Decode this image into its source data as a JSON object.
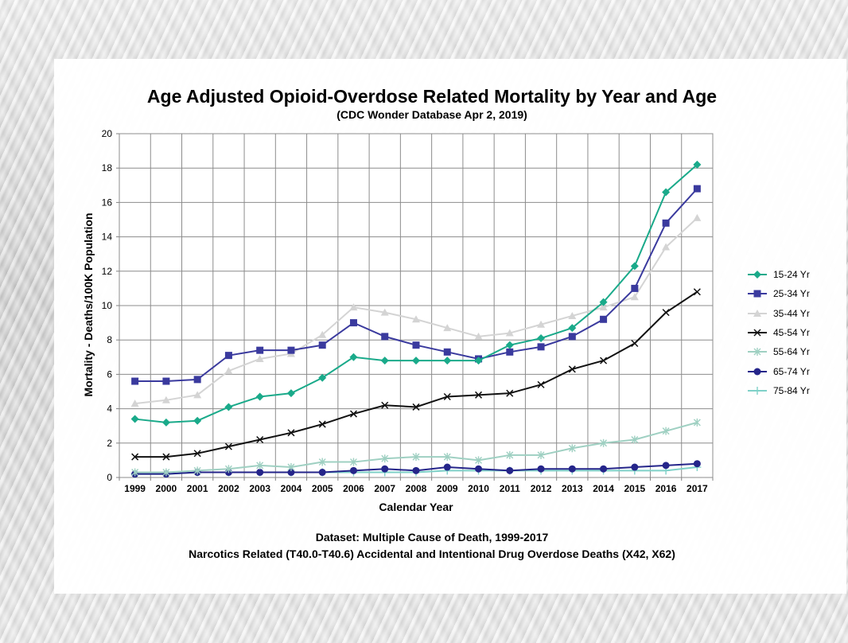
{
  "chart_data": {
    "type": "line",
    "title": "Age Adjusted Opioid-Overdose Related Mortality by Year and Age",
    "subtitle": "(CDC Wonder Database Apr 2, 2019)",
    "xlabel": "Calendar Year",
    "ylabel": "Mortality - Deaths/100K Population",
    "ylim": [
      0,
      20
    ],
    "yticks": [
      "0",
      "2",
      "4",
      "6",
      "8",
      "10",
      "12",
      "14",
      "16",
      "18",
      "20"
    ],
    "grid": true,
    "legend_position": "right",
    "x": [
      "1999",
      "2000",
      "2001",
      "2002",
      "2003",
      "2004",
      "2005",
      "2006",
      "2007",
      "2008",
      "2009",
      "2010",
      "2011",
      "2012",
      "2013",
      "2014",
      "2015",
      "2016",
      "2017"
    ],
    "series": [
      {
        "name": "15-24  Yr",
        "color": "#1aaa8a",
        "marker": "diamond",
        "values": [
          3.4,
          3.2,
          3.3,
          4.1,
          4.7,
          4.9,
          5.8,
          7.0,
          6.8,
          6.8,
          6.8,
          6.8,
          7.7,
          8.1,
          8.7,
          10.2,
          12.3,
          16.6,
          18.2
        ]
      },
      {
        "name": "25-34  Yr",
        "color": "#3a3a9e",
        "marker": "square",
        "values": [
          5.6,
          5.6,
          5.7,
          7.1,
          7.4,
          7.4,
          7.7,
          9.0,
          8.2,
          7.7,
          7.3,
          6.9,
          7.3,
          7.6,
          8.2,
          9.2,
          11.0,
          14.8,
          16.8
        ]
      },
      {
        "name": "35-44  Yr",
        "color": "#d4d4d4",
        "marker": "triangle",
        "values": [
          4.3,
          4.5,
          4.8,
          6.2,
          6.9,
          7.2,
          8.3,
          9.9,
          9.6,
          9.2,
          8.7,
          8.2,
          8.4,
          8.9,
          9.4,
          9.9,
          10.5,
          13.4,
          15.1
        ]
      },
      {
        "name": "45-54  Yr",
        "color": "#111111",
        "marker": "x",
        "values": [
          1.2,
          1.2,
          1.4,
          1.8,
          2.2,
          2.6,
          3.1,
          3.7,
          4.2,
          4.1,
          4.7,
          4.8,
          4.9,
          5.4,
          6.3,
          6.8,
          7.8,
          9.6,
          10.8
        ]
      },
      {
        "name": "55-64  Yr",
        "color": "#9fd0c2",
        "marker": "star",
        "values": [
          0.3,
          0.3,
          0.4,
          0.5,
          0.7,
          0.6,
          0.9,
          0.9,
          1.1,
          1.2,
          1.2,
          1.0,
          1.3,
          1.3,
          1.7,
          2.0,
          2.2,
          2.7,
          3.2
        ]
      },
      {
        "name": "65-74  Yr",
        "color": "#25258a",
        "marker": "circle",
        "values": [
          0.2,
          0.2,
          0.3,
          0.3,
          0.3,
          0.3,
          0.3,
          0.4,
          0.5,
          0.4,
          0.6,
          0.5,
          0.4,
          0.5,
          0.5,
          0.5,
          0.6,
          0.7,
          0.8
        ]
      },
      {
        "name": "75-84  Yr",
        "color": "#7fd1c8",
        "marker": "plus",
        "values": [
          0.2,
          0.2,
          0.3,
          0.3,
          0.3,
          0.3,
          0.3,
          0.3,
          0.3,
          0.3,
          0.4,
          0.4,
          0.4,
          0.4,
          0.4,
          0.4,
          0.4,
          0.4,
          0.6
        ]
      }
    ]
  },
  "footer": {
    "line1": "Dataset: Multiple Cause of Death, 1999-2017",
    "line2": "Narcotics Related (T40.0-T40.6) Accidental and Intentional Drug Overdose Deaths (X42, X62)"
  }
}
